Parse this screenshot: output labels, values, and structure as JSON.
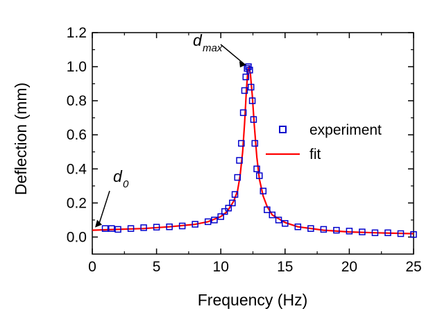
{
  "chart_data": {
    "type": "scatter",
    "title": "",
    "xlabel": "Frequency  (Hz)",
    "ylabel": "Deflection  (mm)",
    "xlim": [
      0,
      25
    ],
    "ylim": [
      -0.1,
      1.2
    ],
    "xticks": [
      0,
      5,
      10,
      15,
      20,
      25
    ],
    "yticks": [
      0.0,
      0.2,
      0.4,
      0.6,
      0.8,
      1.0,
      1.2
    ],
    "x_tick_labels": [
      "0",
      "5",
      "10",
      "15",
      "20",
      "25"
    ],
    "y_tick_labels": [
      "0.0",
      "0.2",
      "0.4",
      "0.6",
      "0.8",
      "1.0",
      "1.2"
    ],
    "grid": false,
    "legend_position": "right",
    "series": [
      {
        "name": "experiment",
        "kind": "scatter",
        "marker": "open-square",
        "color": "#0000cc",
        "x": [
          1.0,
          1.5,
          2.0,
          3.0,
          4.0,
          5.0,
          6.0,
          7.0,
          8.0,
          9.0,
          9.5,
          10.0,
          10.3,
          10.6,
          10.9,
          11.1,
          11.3,
          11.45,
          11.6,
          11.75,
          11.85,
          11.95,
          12.05,
          12.15,
          12.25,
          12.35,
          12.45,
          12.55,
          12.65,
          12.8,
          13.0,
          13.3,
          13.6,
          14.0,
          14.5,
          15.0,
          16.0,
          17.0,
          18.0,
          19.0,
          20.0,
          21.0,
          22.0,
          23.0,
          24.0,
          25.0
        ],
        "y": [
          0.05,
          0.05,
          0.045,
          0.05,
          0.055,
          0.058,
          0.06,
          0.065,
          0.075,
          0.09,
          0.1,
          0.12,
          0.15,
          0.17,
          0.2,
          0.25,
          0.35,
          0.45,
          0.55,
          0.73,
          0.86,
          0.94,
          0.99,
          1.0,
          0.98,
          0.88,
          0.8,
          0.69,
          0.55,
          0.4,
          0.36,
          0.27,
          0.16,
          0.13,
          0.1,
          0.08,
          0.06,
          0.05,
          0.045,
          0.04,
          0.035,
          0.03,
          0.025,
          0.025,
          0.02,
          0.015
        ]
      },
      {
        "name": "fit",
        "kind": "line",
        "color": "#ff0000",
        "x": [
          0,
          2,
          4,
          6,
          8,
          9,
          10,
          10.5,
          11,
          11.3,
          11.5,
          11.7,
          11.85,
          12.0,
          12.1,
          12.2,
          12.3,
          12.45,
          12.6,
          12.8,
          13.0,
          13.3,
          13.6,
          14.0,
          15.0,
          16.0,
          18.0,
          20.0,
          22.0,
          25.0
        ],
        "y": [
          0.04,
          0.045,
          0.05,
          0.06,
          0.075,
          0.09,
          0.12,
          0.15,
          0.21,
          0.27,
          0.36,
          0.5,
          0.67,
          0.87,
          0.97,
          1.0,
          0.96,
          0.83,
          0.66,
          0.47,
          0.34,
          0.24,
          0.18,
          0.13,
          0.085,
          0.06,
          0.04,
          0.03,
          0.025,
          0.02
        ]
      }
    ],
    "annotations": [
      {
        "main": "d",
        "sub": "max",
        "target_x": 12.2,
        "target_y": 1.0
      },
      {
        "main": "d",
        "sub": "0",
        "target_x": 0,
        "target_y": 0.04
      }
    ],
    "legend": [
      {
        "label": "experiment",
        "marker": "open-square",
        "color": "#0000cc"
      },
      {
        "label": "fit",
        "marker": "line",
        "color": "#ff0000"
      }
    ]
  }
}
